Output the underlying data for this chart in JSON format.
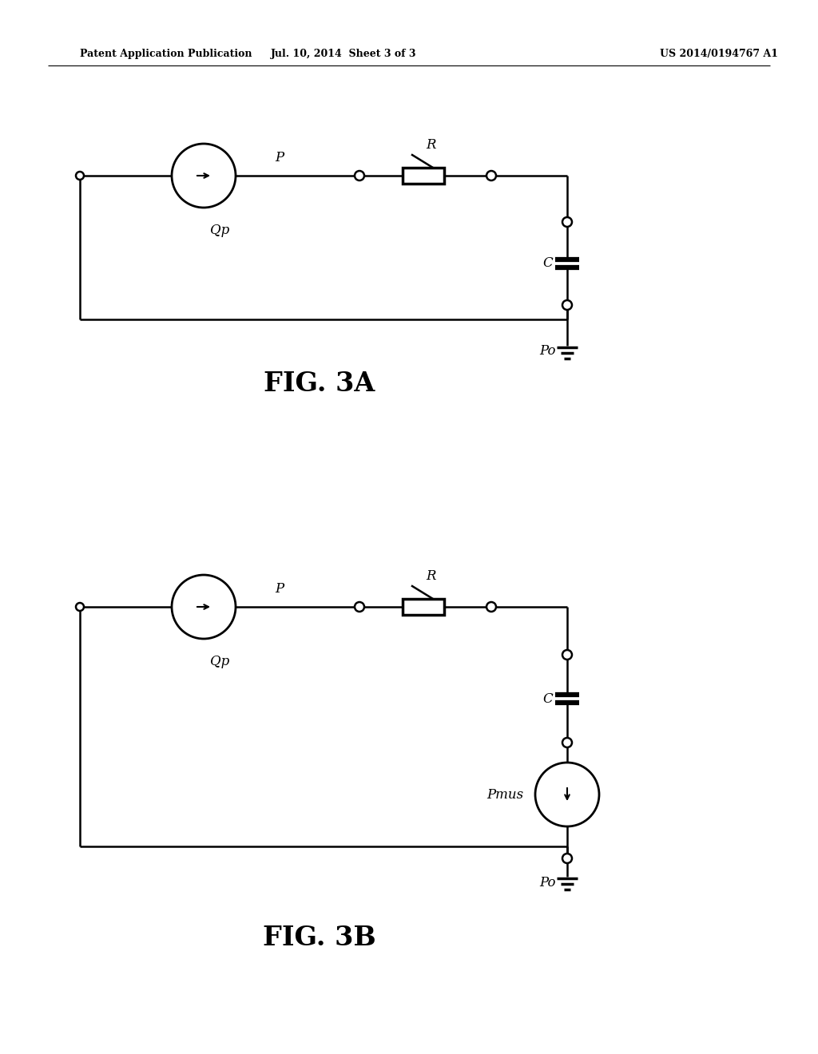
{
  "header_left": "Patent Application Publication",
  "header_center": "Jul. 10, 2014  Sheet 3 of 3",
  "header_right": "US 2014/0194767 A1",
  "fig3a_label": "FIG. 3A",
  "fig3b_label": "FIG. 3B",
  "bg_color": "#ffffff",
  "line_color": "#000000",
  "lw": 1.8,
  "lw_thick": 4.5
}
